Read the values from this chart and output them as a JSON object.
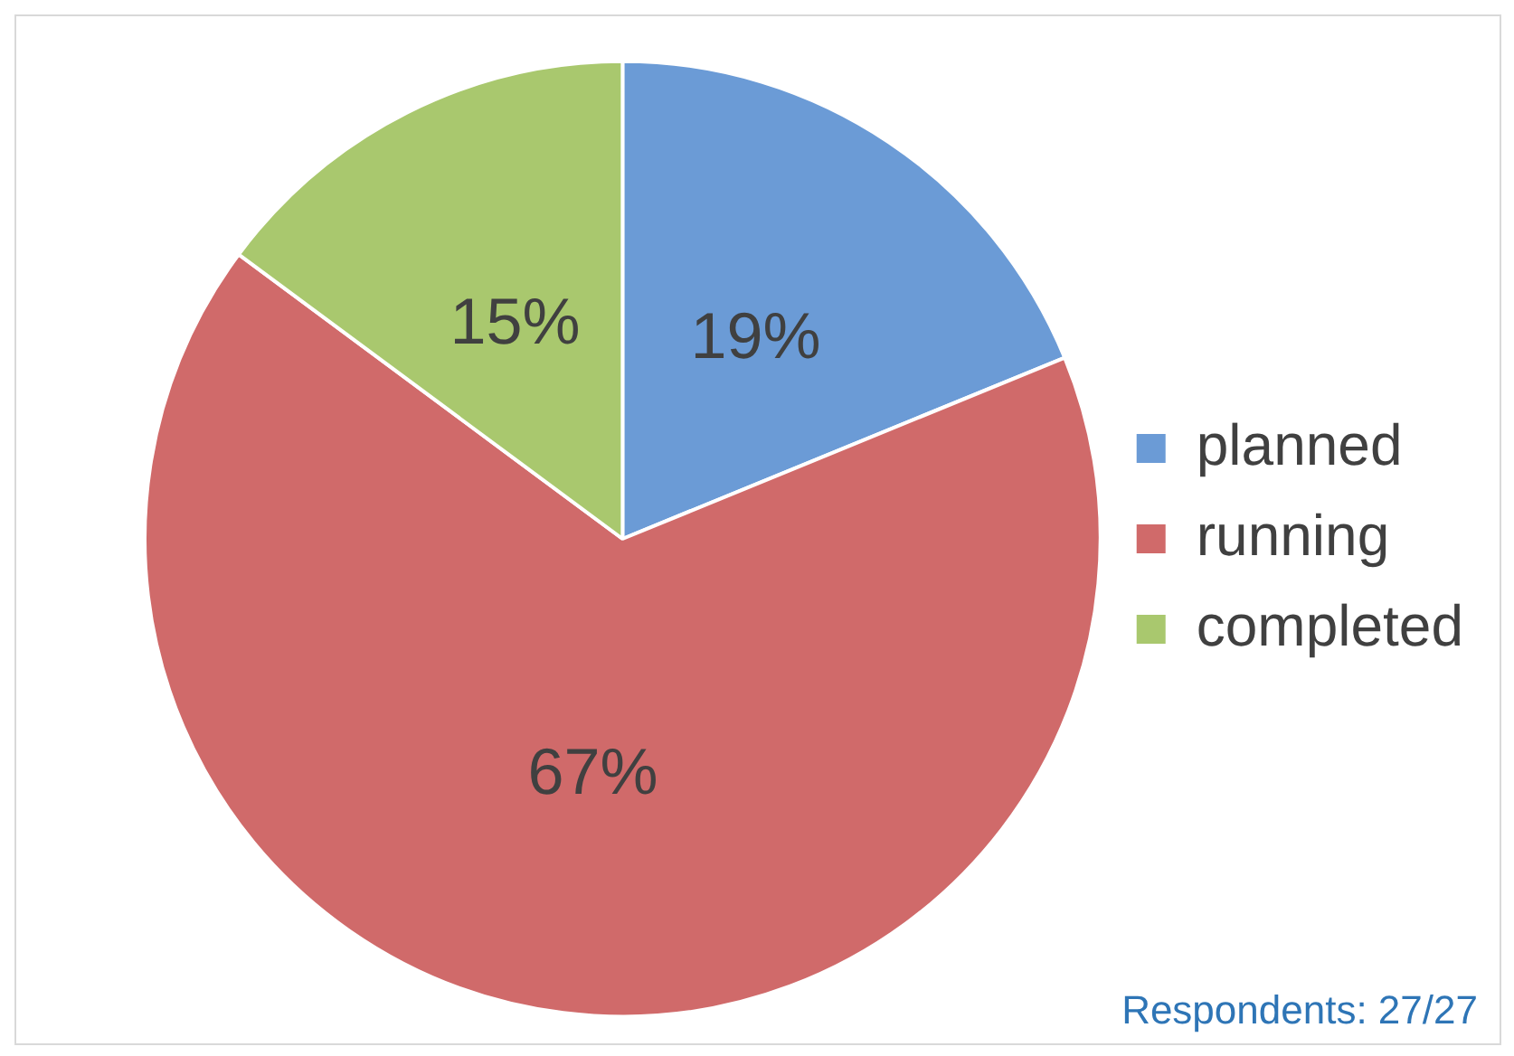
{
  "chart_data": {
    "type": "pie",
    "categories": [
      "planned",
      "running",
      "completed"
    ],
    "values": [
      19,
      67,
      15
    ],
    "value_labels": [
      "19%",
      "67%",
      "15%"
    ],
    "colors": [
      "#6b9bd6",
      "#d06a6a",
      "#a9c86e"
    ],
    "legend": "right",
    "annotations": [
      "Respondents: 27/27"
    ]
  }
}
